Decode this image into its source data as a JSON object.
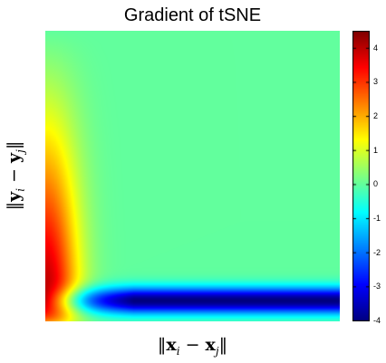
{
  "chart_data": {
    "type": "heatmap",
    "title": "Gradient of tSNE",
    "xlabel": "‖x_i − x_j‖",
    "ylabel": "‖y_i − y_j‖",
    "colormap": "jet",
    "colorbar": {
      "min": -4,
      "max": 4.5,
      "ticks": [
        4,
        3,
        2,
        1,
        0,
        -1,
        -2,
        -3,
        -4
      ],
      "tick_labels": [
        "4",
        "3",
        "2",
        "1",
        "0",
        "-1",
        "-2",
        "-3",
        "-4"
      ]
    },
    "grid": false,
    "features": [
      {
        "region": "small x distance, small-to-mid y distance",
        "peak_value": 4.5,
        "description": "strong positive (red) lobe along left edge"
      },
      {
        "region": "large x distance, small y distance",
        "peak_value": -4,
        "description": "strong negative (blue) band along bottom"
      },
      {
        "region": "elsewhere",
        "value": 0,
        "description": "near-zero plateau"
      }
    ]
  }
}
